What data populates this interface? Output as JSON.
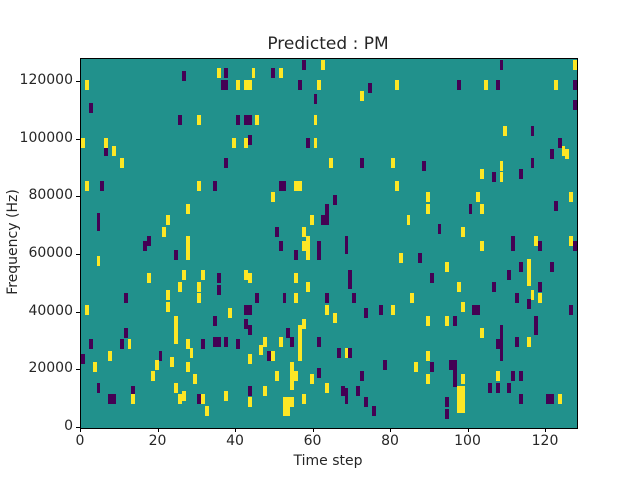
{
  "chart": {
    "title": "Predicted : PM",
    "xlabel": "Time step",
    "ylabel": "Frequency (Hz)"
  },
  "chart_data": {
    "type": "heatmap",
    "title": "Predicted : PM",
    "xlabel": "Time step",
    "ylabel": "Frequency (Hz)",
    "x_range": [
      0,
      128
    ],
    "y_range_hz": [
      0,
      128000
    ],
    "x_ticks": [
      0,
      20,
      40,
      60,
      80,
      100,
      120
    ],
    "y_ticks": [
      0,
      20000,
      40000,
      60000,
      80000,
      100000,
      120000
    ],
    "grid": false,
    "legend": "none",
    "colors": {
      "background_value": "#21918c",
      "high_value": "#fde725",
      "low_value": "#440154",
      "figure_background": "#ffffff",
      "text": "#262626"
    },
    "cell_units": "each cell is [time_step, frequency_kHz]",
    "cells_yellow": [
      [
        1,
        119
      ],
      [
        35,
        123
      ],
      [
        40,
        119
      ],
      [
        42,
        119
      ],
      [
        43,
        119
      ],
      [
        30,
        107
      ],
      [
        0,
        99
      ],
      [
        6,
        99
      ],
      [
        8,
        96
      ],
      [
        10,
        92
      ],
      [
        39,
        99
      ],
      [
        42,
        99
      ],
      [
        1,
        84
      ],
      [
        30,
        84
      ],
      [
        27,
        76
      ],
      [
        22,
        72
      ],
      [
        21,
        68
      ],
      [
        27,
        65
      ],
      [
        27,
        63
      ],
      [
        62,
        126
      ],
      [
        44,
        123
      ],
      [
        51,
        123
      ],
      [
        61,
        119
      ],
      [
        72,
        115
      ],
      [
        81,
        119
      ],
      [
        45,
        107
      ],
      [
        60,
        107
      ],
      [
        60,
        99
      ],
      [
        64,
        92
      ],
      [
        80,
        92
      ],
      [
        55,
        84
      ],
      [
        56,
        84
      ],
      [
        81,
        84
      ],
      [
        49,
        80
      ],
      [
        59,
        72
      ],
      [
        84,
        72
      ],
      [
        57,
        68
      ],
      [
        58,
        65
      ],
      [
        127,
        126
      ],
      [
        104,
        119
      ],
      [
        122,
        119
      ],
      [
        109,
        103
      ],
      [
        124,
        96
      ],
      [
        125,
        95
      ],
      [
        108,
        91
      ],
      [
        103,
        88
      ],
      [
        108,
        87
      ],
      [
        89,
        80
      ],
      [
        89,
        76
      ],
      [
        102,
        80
      ],
      [
        103,
        76
      ],
      [
        126,
        80
      ],
      [
        98,
        68
      ],
      [
        117,
        65
      ],
      [
        126,
        65
      ],
      [
        27,
        60
      ],
      [
        4,
        58
      ],
      [
        17,
        52
      ],
      [
        26,
        53
      ],
      [
        31,
        53
      ],
      [
        42,
        53
      ],
      [
        25,
        49
      ],
      [
        30,
        49
      ],
      [
        22,
        46
      ],
      [
        22,
        42
      ],
      [
        30,
        45
      ],
      [
        1,
        41
      ],
      [
        38,
        40
      ],
      [
        24,
        37
      ],
      [
        24,
        34
      ],
      [
        24,
        31
      ],
      [
        12,
        29
      ],
      [
        27,
        29
      ],
      [
        28,
        26
      ],
      [
        7,
        25
      ],
      [
        19,
        22
      ],
      [
        23,
        23
      ],
      [
        18,
        18
      ],
      [
        27,
        21
      ],
      [
        3,
        21
      ],
      [
        29,
        17
      ],
      [
        24,
        14
      ],
      [
        13,
        10
      ],
      [
        25,
        10
      ],
      [
        26,
        11
      ],
      [
        31,
        10
      ],
      [
        32,
        6
      ],
      [
        37,
        11
      ],
      [
        57,
        63
      ],
      [
        58,
        63
      ],
      [
        58,
        60
      ],
      [
        82,
        59
      ],
      [
        43,
        52
      ],
      [
        55,
        52
      ],
      [
        58,
        49
      ],
      [
        55,
        45
      ],
      [
        85,
        45
      ],
      [
        63,
        41
      ],
      [
        80,
        41
      ],
      [
        65,
        38
      ],
      [
        57,
        36
      ],
      [
        56,
        34
      ],
      [
        56,
        31
      ],
      [
        56,
        28
      ],
      [
        56,
        25
      ],
      [
        47,
        30
      ],
      [
        46,
        27
      ],
      [
        51,
        30
      ],
      [
        68,
        26
      ],
      [
        43,
        24
      ],
      [
        49,
        25
      ],
      [
        50,
        18
      ],
      [
        54,
        21
      ],
      [
        54,
        18
      ],
      [
        54,
        15
      ],
      [
        55,
        18
      ],
      [
        59,
        17
      ],
      [
        47,
        13
      ],
      [
        63,
        14
      ],
      [
        52,
        9
      ],
      [
        53,
        9
      ],
      [
        52,
        6
      ],
      [
        53,
        6
      ],
      [
        54,
        9
      ],
      [
        57,
        10
      ],
      [
        43,
        9
      ],
      [
        103,
        63
      ],
      [
        94,
        56
      ],
      [
        115,
        57
      ],
      [
        115,
        54
      ],
      [
        115,
        51
      ],
      [
        97,
        49
      ],
      [
        116,
        46
      ],
      [
        118,
        45
      ],
      [
        98,
        42
      ],
      [
        89,
        37
      ],
      [
        94,
        37
      ],
      [
        103,
        33
      ],
      [
        115,
        30
      ],
      [
        86,
        21
      ],
      [
        89,
        25
      ],
      [
        89,
        17
      ],
      [
        98,
        17
      ],
      [
        97,
        13
      ],
      [
        98,
        13
      ],
      [
        97,
        10
      ],
      [
        98,
        10
      ],
      [
        97,
        7
      ],
      [
        98,
        7
      ],
      [
        107,
        18
      ],
      [
        123,
        10
      ]
    ],
    "cells_dark": [
      [
        26,
        122
      ],
      [
        37,
        123
      ],
      [
        36,
        119
      ],
      [
        37,
        119
      ],
      [
        2,
        111
      ],
      [
        25,
        107
      ],
      [
        40,
        107
      ],
      [
        42,
        107
      ],
      [
        6,
        96
      ],
      [
        37,
        92
      ],
      [
        5,
        84
      ],
      [
        34,
        84
      ],
      [
        4,
        73
      ],
      [
        4,
        70
      ],
      [
        17,
        65
      ],
      [
        16,
        63
      ],
      [
        57,
        126
      ],
      [
        49,
        123
      ],
      [
        56,
        119
      ],
      [
        74,
        118
      ],
      [
        60,
        114
      ],
      [
        43,
        107
      ],
      [
        58,
        99
      ],
      [
        43,
        100
      ],
      [
        72,
        92
      ],
      [
        51,
        84
      ],
      [
        52,
        84
      ],
      [
        65,
        79
      ],
      [
        63,
        76
      ],
      [
        63,
        74
      ],
      [
        62,
        72
      ],
      [
        63,
        72
      ],
      [
        50,
        68
      ],
      [
        68,
        65
      ],
      [
        108,
        126
      ],
      [
        97,
        119
      ],
      [
        107,
        119
      ],
      [
        127,
        119
      ],
      [
        127,
        112
      ],
      [
        116,
        103
      ],
      [
        123,
        99
      ],
      [
        121,
        95
      ],
      [
        88,
        91
      ],
      [
        116,
        92
      ],
      [
        106,
        87
      ],
      [
        113,
        88
      ],
      [
        100,
        76
      ],
      [
        122,
        77
      ],
      [
        92,
        69
      ],
      [
        111,
        65
      ],
      [
        24,
        60
      ],
      [
        35,
        52
      ],
      [
        35,
        48
      ],
      [
        11,
        45
      ],
      [
        42,
        41
      ],
      [
        34,
        37
      ],
      [
        42,
        36
      ],
      [
        11,
        33
      ],
      [
        10,
        29
      ],
      [
        2,
        29
      ],
      [
        31,
        29
      ],
      [
        34,
        30
      ],
      [
        35,
        30
      ],
      [
        37,
        30
      ],
      [
        40,
        29
      ],
      [
        0,
        24
      ],
      [
        20,
        25
      ],
      [
        4,
        14
      ],
      [
        13,
        13
      ],
      [
        7,
        10
      ],
      [
        8,
        10
      ],
      [
        30,
        10
      ],
      [
        51,
        63
      ],
      [
        55,
        60
      ],
      [
        61,
        63
      ],
      [
        61,
        60
      ],
      [
        68,
        62
      ],
      [
        69,
        53
      ],
      [
        69,
        50
      ],
      [
        45,
        45
      ],
      [
        52,
        45
      ],
      [
        63,
        45
      ],
      [
        70,
        45
      ],
      [
        73,
        40
      ],
      [
        77,
        41
      ],
      [
        43,
        41
      ],
      [
        53,
        33
      ],
      [
        54,
        30
      ],
      [
        43,
        34
      ],
      [
        61,
        30
      ],
      [
        66,
        26
      ],
      [
        69,
        26
      ],
      [
        48,
        25
      ],
      [
        78,
        22
      ],
      [
        61,
        19
      ],
      [
        72,
        18
      ],
      [
        67,
        13
      ],
      [
        68,
        12
      ],
      [
        68,
        10
      ],
      [
        71,
        13
      ],
      [
        73,
        9
      ],
      [
        75,
        6
      ],
      [
        43,
        13
      ],
      [
        111,
        63
      ],
      [
        118,
        63
      ],
      [
        127,
        63
      ],
      [
        87,
        59
      ],
      [
        90,
        52
      ],
      [
        113,
        56
      ],
      [
        110,
        53
      ],
      [
        121,
        56
      ],
      [
        106,
        49
      ],
      [
        118,
        49
      ],
      [
        112,
        45
      ],
      [
        115,
        43
      ],
      [
        101,
        41
      ],
      [
        102,
        41
      ],
      [
        126,
        41
      ],
      [
        96,
        37
      ],
      [
        117,
        37
      ],
      [
        117,
        34
      ],
      [
        108,
        34
      ],
      [
        108,
        31
      ],
      [
        108,
        28
      ],
      [
        108,
        25
      ],
      [
        107,
        29
      ],
      [
        112,
        30
      ],
      [
        90,
        21
      ],
      [
        95,
        22
      ],
      [
        96,
        22
      ],
      [
        96,
        19
      ],
      [
        96,
        16
      ],
      [
        105,
        14
      ],
      [
        107,
        14
      ],
      [
        110,
        14
      ],
      [
        111,
        18
      ],
      [
        113,
        18
      ],
      [
        113,
        10
      ],
      [
        120,
        10
      ],
      [
        121,
        10
      ],
      [
        94,
        9
      ],
      [
        94,
        5
      ]
    ]
  }
}
